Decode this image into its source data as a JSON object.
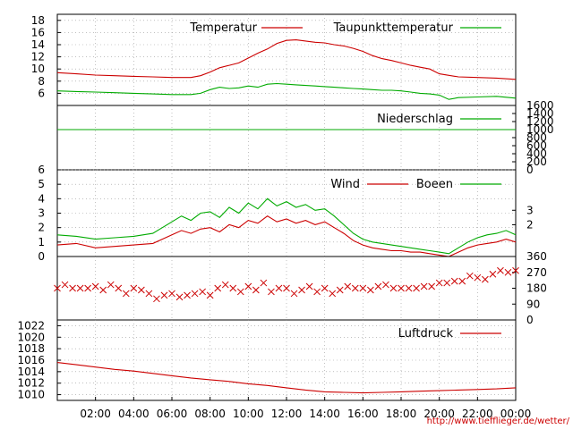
{
  "colors": {
    "red": "#cc0000",
    "green": "#00aa00",
    "grid": "#9a9a9a",
    "axis": "#000000"
  },
  "credit": "http://www.tiefflieger.de/wetter/",
  "x_ticks": [
    "02:00",
    "04:00",
    "06:00",
    "08:00",
    "10:00",
    "12:00",
    "14:00",
    "16:00",
    "18:00",
    "20:00",
    "22:00",
    "00:00"
  ],
  "chart_data": [
    {
      "type": "line",
      "ylim": [
        4,
        19
      ],
      "yticks_left": [
        "6",
        "8",
        "10",
        "12",
        "14",
        "16",
        "18"
      ],
      "legend_placement": "top",
      "series": [
        {
          "name": "Temperatur",
          "color": "#cc0000",
          "x": [
            0,
            1,
            2,
            3,
            4,
            5,
            6,
            7,
            7.5,
            8,
            8.5,
            9,
            9.5,
            10,
            10.5,
            11,
            11.5,
            12,
            12.5,
            13,
            13.5,
            14,
            14.5,
            15,
            15.5,
            16,
            16.5,
            17,
            17.5,
            18,
            18.5,
            19,
            19.5,
            20,
            21,
            22,
            23,
            24
          ],
          "y": [
            9.4,
            9.2,
            9.0,
            8.9,
            8.8,
            8.7,
            8.6,
            8.6,
            8.9,
            9.5,
            10.2,
            10.6,
            11.0,
            11.8,
            12.6,
            13.3,
            14.2,
            14.7,
            14.8,
            14.6,
            14.4,
            14.3,
            14.0,
            13.8,
            13.4,
            12.9,
            12.2,
            11.7,
            11.4,
            11.0,
            10.6,
            10.3,
            10.0,
            9.2,
            8.7,
            8.6,
            8.5,
            8.3
          ]
        },
        {
          "name": "Taupunkttemperatur",
          "color": "#00aa00",
          "x": [
            0,
            1,
            2,
            3,
            4,
            5,
            6,
            7,
            7.5,
            8,
            8.5,
            9,
            9.5,
            10,
            10.5,
            11,
            11.5,
            12,
            12.5,
            13,
            13.5,
            14,
            14.5,
            15,
            15.5,
            16,
            16.5,
            17,
            17.5,
            18,
            18.5,
            19,
            19.5,
            20,
            20.5,
            21,
            22,
            23,
            24
          ],
          "y": [
            6.4,
            6.3,
            6.2,
            6.1,
            6.0,
            5.9,
            5.8,
            5.8,
            6.0,
            6.6,
            7.0,
            6.8,
            6.9,
            7.2,
            7.0,
            7.5,
            7.6,
            7.5,
            7.4,
            7.3,
            7.2,
            7.1,
            7.0,
            6.9,
            6.8,
            6.7,
            6.6,
            6.5,
            6.5,
            6.4,
            6.2,
            6.0,
            5.9,
            5.7,
            5.0,
            5.3,
            5.4,
            5.5,
            5.2
          ]
        }
      ]
    },
    {
      "type": "line",
      "ylim": [
        0,
        1600
      ],
      "yticks_right": [
        "0",
        "200",
        "400",
        "600",
        "800",
        "1000",
        "1200",
        "1400",
        "1600"
      ],
      "legend_placement": "top-right",
      "series": [
        {
          "name": "Niederschlag",
          "color": "#00aa00",
          "x": [
            0,
            24
          ],
          "y": [
            1000,
            1000
          ]
        }
      ]
    },
    {
      "type": "line",
      "ylim": [
        0,
        6
      ],
      "yticks_left": [
        "0",
        "1",
        "2",
        "3",
        "4",
        "5",
        "6"
      ],
      "yticks_right": [
        "2",
        "3"
      ],
      "legend_placement": "top-right",
      "series": [
        {
          "name": "Wind",
          "color": "#cc0000",
          "x": [
            0,
            1,
            2,
            3,
            4,
            5,
            5.5,
            6,
            6.5,
            7,
            7.5,
            8,
            8.5,
            9,
            9.5,
            10,
            10.5,
            11,
            11.5,
            12,
            12.5,
            13,
            13.5,
            14,
            14.5,
            15,
            15.5,
            16,
            16.5,
            17,
            17.5,
            18,
            18.5,
            19,
            19.5,
            20,
            20.5,
            21,
            21.5,
            22,
            22.5,
            23,
            23.5,
            24
          ],
          "y": [
            0.8,
            0.9,
            0.6,
            0.7,
            0.8,
            0.9,
            1.2,
            1.5,
            1.8,
            1.6,
            1.9,
            2.0,
            1.7,
            2.2,
            2.0,
            2.5,
            2.3,
            2.8,
            2.4,
            2.6,
            2.3,
            2.5,
            2.2,
            2.4,
            2.0,
            1.6,
            1.1,
            0.8,
            0.6,
            0.5,
            0.4,
            0.4,
            0.3,
            0.3,
            0.2,
            0.1,
            0.0,
            0.3,
            0.6,
            0.8,
            0.9,
            1.0,
            1.2,
            1.0
          ]
        },
        {
          "name": "Boeen",
          "color": "#00aa00",
          "x": [
            0,
            1,
            2,
            3,
            4,
            5,
            5.5,
            6,
            6.5,
            7,
            7.5,
            8,
            8.5,
            9,
            9.5,
            10,
            10.5,
            11,
            11.5,
            12,
            12.5,
            13,
            13.5,
            14,
            14.5,
            15,
            15.5,
            16,
            16.5,
            17,
            17.5,
            18,
            18.5,
            19,
            19.5,
            20,
            20.5,
            21,
            21.5,
            22,
            22.5,
            23,
            23.5,
            24
          ],
          "y": [
            1.5,
            1.4,
            1.2,
            1.3,
            1.4,
            1.6,
            2.0,
            2.4,
            2.8,
            2.5,
            3.0,
            3.1,
            2.7,
            3.4,
            3.0,
            3.7,
            3.3,
            4.0,
            3.5,
            3.8,
            3.4,
            3.6,
            3.2,
            3.3,
            2.8,
            2.2,
            1.6,
            1.2,
            1.0,
            0.9,
            0.8,
            0.7,
            0.6,
            0.5,
            0.4,
            0.3,
            0.2,
            0.6,
            1.0,
            1.3,
            1.5,
            1.6,
            1.8,
            1.5
          ]
        }
      ]
    },
    {
      "type": "scatter",
      "ylim": [
        0,
        360
      ],
      "yticks_right": [
        "0",
        "90",
        "180",
        "270",
        "360"
      ],
      "series": [
        {
          "name": "",
          "color": "#cc0000",
          "marker": "x",
          "x": [
            0,
            0.4,
            0.8,
            1.2,
            1.6,
            2,
            2.4,
            2.8,
            3.2,
            3.6,
            4,
            4.4,
            4.8,
            5.2,
            5.6,
            6,
            6.4,
            6.8,
            7.2,
            7.6,
            8,
            8.4,
            8.8,
            9.2,
            9.6,
            10,
            10.4,
            10.8,
            11.2,
            11.6,
            12,
            12.4,
            12.8,
            13.2,
            13.6,
            14,
            14.4,
            14.8,
            15.2,
            15.6,
            16,
            16.4,
            16.8,
            17.2,
            17.6,
            18,
            18.4,
            18.8,
            19.2,
            19.6,
            20,
            20.4,
            20.8,
            21.2,
            21.6,
            22,
            22.4,
            22.8,
            23.2,
            23.6,
            24
          ],
          "y": [
            180,
            200,
            180,
            180,
            180,
            190,
            170,
            200,
            180,
            150,
            180,
            170,
            150,
            120,
            140,
            150,
            130,
            140,
            150,
            160,
            140,
            180,
            200,
            180,
            160,
            190,
            170,
            210,
            160,
            180,
            180,
            150,
            170,
            190,
            160,
            180,
            150,
            170,
            190,
            180,
            180,
            170,
            190,
            200,
            180,
            180,
            180,
            180,
            190,
            190,
            210,
            210,
            220,
            220,
            250,
            240,
            230,
            260,
            280,
            270,
            280
          ]
        }
      ]
    },
    {
      "type": "line",
      "ylim": [
        1009,
        1023
      ],
      "yticks_left": [
        "1010",
        "1012",
        "1014",
        "1016",
        "1018",
        "1020",
        "1022"
      ],
      "legend_placement": "top-right",
      "series": [
        {
          "name": "Luftdruck",
          "color": "#cc0000",
          "x": [
            0,
            1,
            2,
            3,
            4,
            5,
            6,
            7,
            8,
            9,
            10,
            11,
            12,
            13,
            14,
            15,
            16,
            17,
            18,
            19,
            20,
            21,
            22,
            23,
            24
          ],
          "y": [
            1015.6,
            1015.2,
            1014.8,
            1014.4,
            1014.1,
            1013.7,
            1013.3,
            1012.9,
            1012.6,
            1012.3,
            1011.9,
            1011.6,
            1011.2,
            1010.8,
            1010.5,
            1010.4,
            1010.3,
            1010.4,
            1010.5,
            1010.6,
            1010.7,
            1010.8,
            1010.9,
            1011.0,
            1011.2
          ]
        }
      ]
    }
  ]
}
